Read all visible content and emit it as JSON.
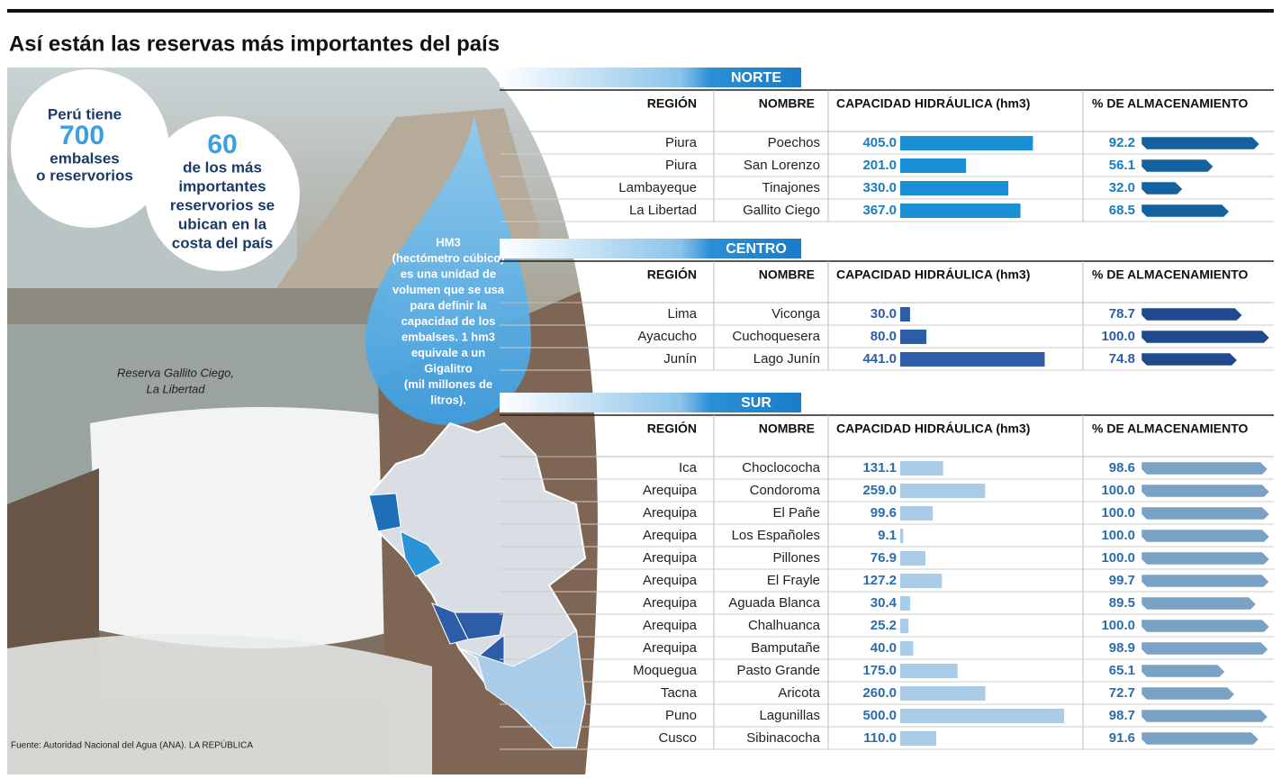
{
  "header": {
    "title": "Así están las reservas más importantes del país"
  },
  "bubble_total": {
    "lines": [
      "Perú tiene",
      "700",
      "embalses",
      "o reservorios"
    ]
  },
  "bubble_coast": {
    "lines": [
      "60",
      "de los más",
      "importantes",
      "reservorios se",
      "ubican en la",
      "costa del país"
    ]
  },
  "drop": {
    "lines": [
      "HM3",
      "(hectómetro cúbico)",
      "es una unidad de",
      "volumen que se usa",
      "para definir la",
      "capacidad de los",
      "embalses. 1 hm3",
      "equivale a un",
      "Gigalitro",
      "(mil millones de",
      "litros)."
    ]
  },
  "photo_caption": [
    "Reserva Gallito Ciego,",
    "La Libertad"
  ],
  "source": "Fuente: Autoridad Nacional del Agua (ANA). LA REPÚBLICA",
  "columns": [
    "REGIÓN",
    "NOMBRE",
    "CAPACIDAD HIDRÁULICA (hm3)",
    "% DE ALMACENAMIENTO"
  ],
  "sections": [
    {
      "name": "NORTE",
      "cap_color": "#1a8fd6",
      "pct_color": "#13629f",
      "text_color": "#1a7cc0",
      "rows": [
        {
          "region": "Piura",
          "name": "Poechos",
          "capacity": 405,
          "capacity_label": "405.0",
          "storage": 92.2
        },
        {
          "region": "Piura",
          "name": "San Lorenzo",
          "capacity": 201,
          "capacity_label": "201.0",
          "storage": 56.1
        },
        {
          "region": "Lambayeque",
          "name": "Tinajones",
          "capacity": 330,
          "capacity_label": "330.0",
          "storage": 32,
          "storage_label": "32.0"
        },
        {
          "region": "La Libertad",
          "name": "Gallito Ciego",
          "capacity": 367,
          "capacity_label": "367.0",
          "storage": 68.5
        }
      ]
    },
    {
      "name": "CENTRO",
      "cap_color": "#2d5ca8",
      "pct_color": "#1f4a8c",
      "text_color": "#2d5ca8",
      "rows": [
        {
          "region": "Lima",
          "name": "Viconga",
          "capacity": 30,
          "capacity_label": "30.0",
          "storage": 78.7
        },
        {
          "region": "Ayacucho",
          "name": "Cuchoquesera",
          "capacity": 80,
          "capacity_label": "80.0",
          "storage": 100,
          "storage_label": "100.0"
        },
        {
          "region": "Junín",
          "name": "Lago Junín",
          "capacity": 441,
          "capacity_label": "441.0",
          "storage": 74.8
        }
      ]
    },
    {
      "name": "SUR",
      "cap_color": "#a9cde9",
      "pct_color": "#7aa2c4",
      "text_color": "#2b6cad",
      "rows": [
        {
          "region": "Ica",
          "name": "Choclocochа",
          "capacity": 131.1,
          "storage": 98.6
        },
        {
          "region": "Arequipa",
          "name": "Condoroma",
          "capacity": 259,
          "capacity_label": "259.0",
          "storage": 100,
          "storage_label": "100.0"
        },
        {
          "region": "Arequipa",
          "name": "El Pañe",
          "capacity": 99.6,
          "storage": 100,
          "storage_label": "100.0"
        },
        {
          "region": "Arequipa",
          "name": "Los Españoles",
          "capacity": 9.1,
          "storage": 100,
          "storage_label": "100.0"
        },
        {
          "region": "Arequipa",
          "name": "Pillones",
          "capacity": 76.9,
          "storage": 100,
          "storage_label": "100.0"
        },
        {
          "region": "Arequipa",
          "name": "El Frayle",
          "capacity": 127.2,
          "storage": 99.7
        },
        {
          "region": "Arequipa",
          "name": "Aguada Blanca",
          "capacity": 30.4,
          "storage": 89.5
        },
        {
          "region": "Arequipa",
          "name": "Chalhuanca",
          "capacity": 25.2,
          "storage": 100,
          "storage_label": "100.0"
        },
        {
          "region": "Arequipa",
          "name": "Bamputañe",
          "capacity": 40,
          "capacity_label": "40.0",
          "storage": 98.9
        },
        {
          "region": "Moquegua",
          "name": "Pasto Grande",
          "capacity": 175,
          "capacity_label": "175.0",
          "storage": 65.1
        },
        {
          "region": "Tacna",
          "name": "Aricota",
          "capacity": 260,
          "capacity_label": "260.0",
          "storage": 72.7
        },
        {
          "region": "Puno",
          "name": "Lagunillas",
          "capacity": 500,
          "capacity_label": "500.0",
          "storage": 98.7
        },
        {
          "region": "Cusco",
          "name": "Sibinacocha",
          "capacity": 110,
          "capacity_label": "110.0",
          "storage": 91.6
        }
      ]
    }
  ]
}
